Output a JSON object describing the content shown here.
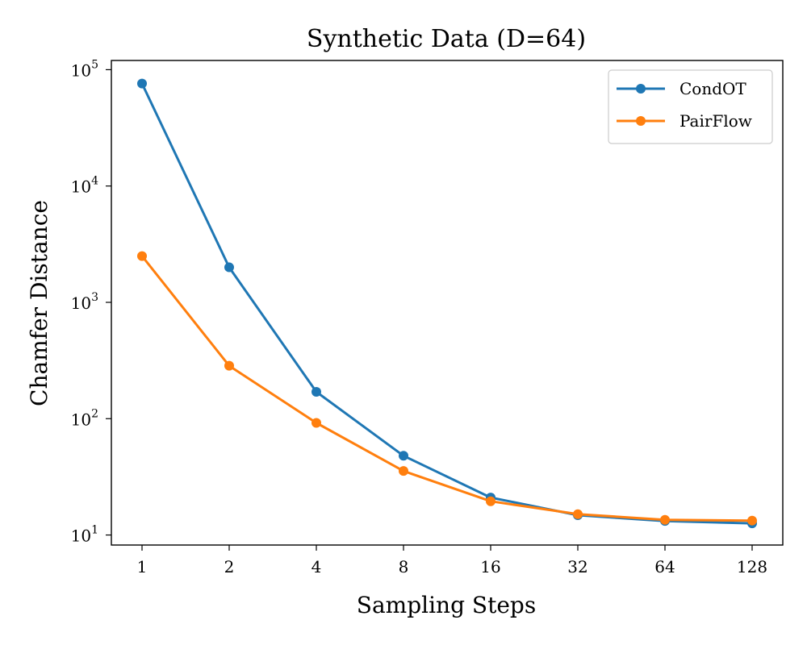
{
  "chart_data": {
    "type": "line",
    "title": "Synthetic Data (D=64)",
    "xlabel": "Sampling Steps",
    "ylabel": "Chamfer Distance",
    "x_scale": "log2",
    "y_scale": "log10",
    "x": [
      1,
      2,
      4,
      8,
      16,
      32,
      64,
      128
    ],
    "x_tick_labels": [
      "1",
      "2",
      "4",
      "8",
      "16",
      "32",
      "64",
      "128"
    ],
    "y_ticks": [
      {
        "base": "10",
        "exp": "1",
        "value": 10
      },
      {
        "base": "10",
        "exp": "2",
        "value": 100
      },
      {
        "base": "10",
        "exp": "3",
        "value": 1000
      },
      {
        "base": "10",
        "exp": "4",
        "value": 10000
      },
      {
        "base": "10",
        "exp": "5",
        "value": 100000
      }
    ],
    "ylim": [
      8.2,
      120000
    ],
    "legend_position": "upper-right",
    "grid": false,
    "series": [
      {
        "name": "CondOT",
        "color": "#1f77b4",
        "values": [
          76000,
          2000,
          170,
          48,
          21,
          14.8,
          13.2,
          12.6
        ]
      },
      {
        "name": "PairFlow",
        "color": "#ff7f0e",
        "values": [
          2500,
          285,
          92,
          35.5,
          19.5,
          15.1,
          13.5,
          13.3
        ]
      }
    ]
  }
}
